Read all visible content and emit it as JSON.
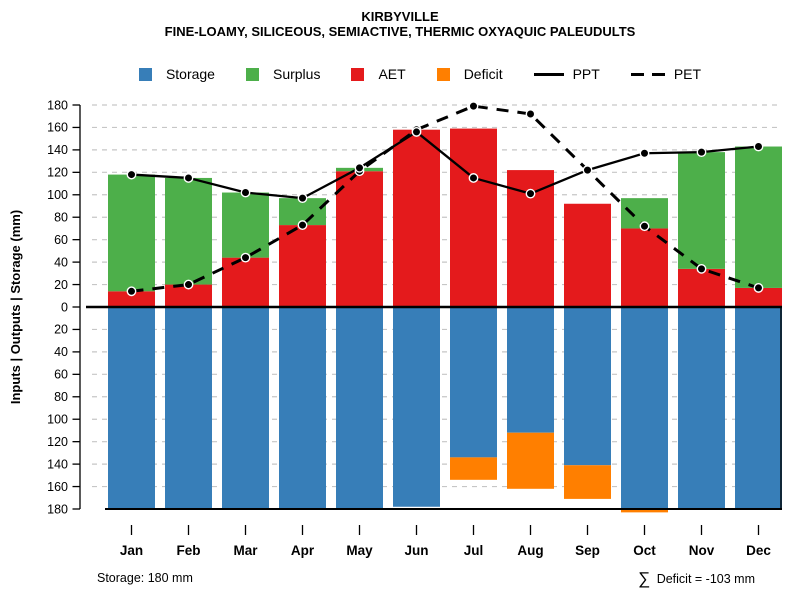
{
  "header": {
    "title": "KIRBYVILLE",
    "subtitle": "FINE-LOAMY, SILICEOUS, SEMIACTIVE, THERMIC OXYAQUIC PALEUDULTS"
  },
  "legend": {
    "items": [
      {
        "label": "Storage",
        "swatch": "square",
        "color": "#377EB8"
      },
      {
        "label": "Surplus",
        "swatch": "square",
        "color": "#4DAF4A"
      },
      {
        "label": "AET",
        "swatch": "square",
        "color": "#E41A1C"
      },
      {
        "label": "Deficit",
        "swatch": "square",
        "color": "#FF7F00"
      },
      {
        "label": "PPT",
        "swatch": "line-solid",
        "color": "#000000"
      },
      {
        "label": "PET",
        "swatch": "line-dashed",
        "color": "#000000"
      }
    ]
  },
  "axes": {
    "y_label": "Inputs | Outputs | Storage  (mm)",
    "y_max": 180,
    "y_tick_step": 20,
    "orientation": "mirrored: inputs/outputs above zero line, storage below"
  },
  "footer": {
    "storage_note": "Storage: 180 mm",
    "deficit_sigma": "∑",
    "deficit_text": " Deficit = -103 mm"
  },
  "colors": {
    "storage": "#377EB8",
    "surplus": "#4DAF4A",
    "aet": "#E41A1C",
    "deficit": "#FF7F00",
    "line": "#000000",
    "grid": "#C6C6C6",
    "background": "#FFFFFF"
  },
  "chart_data": {
    "type": "bar",
    "subtype": "soil water balance (stacked bars, mirrored axis, overlaid lines)",
    "categories": [
      "Jan",
      "Feb",
      "Mar",
      "Apr",
      "May",
      "Jun",
      "Jul",
      "Aug",
      "Sep",
      "Oct",
      "Nov",
      "Dec"
    ],
    "series": [
      {
        "name": "AET",
        "type": "bar",
        "panel": "top",
        "color": "#E41A1C",
        "values": [
          14,
          20,
          44,
          73,
          121,
          158,
          159,
          122,
          92,
          70,
          34,
          17
        ]
      },
      {
        "name": "Surplus",
        "type": "bar",
        "panel": "top",
        "color": "#4DAF4A",
        "values": [
          104,
          95,
          58,
          24,
          3,
          0,
          0,
          0,
          0,
          27,
          104,
          126
        ]
      },
      {
        "name": "Storage",
        "type": "bar",
        "panel": "bottom",
        "color": "#377EB8",
        "values": [
          180,
          180,
          180,
          180,
          180,
          178,
          134,
          112,
          141,
          180,
          180,
          180
        ]
      },
      {
        "name": "Deficit",
        "type": "bar",
        "panel": "bottom",
        "color": "#FF7F00",
        "values": [
          0,
          0,
          0,
          0,
          0,
          0,
          20,
          50,
          30,
          3,
          0,
          0
        ]
      },
      {
        "name": "PPT",
        "type": "line",
        "style": "solid",
        "panel": "top",
        "color": "#000000",
        "values": [
          118,
          115,
          102,
          97,
          124,
          156,
          115,
          101,
          122,
          137,
          138,
          143
        ]
      },
      {
        "name": "PET",
        "type": "line",
        "style": "dashed",
        "panel": "top",
        "color": "#000000",
        "values": [
          14,
          20,
          44,
          73,
          121,
          158,
          179,
          172,
          122,
          72,
          34,
          17
        ]
      }
    ],
    "title": "KIRBYVILLE",
    "subtitle": "FINE-LOAMY, SILICEOUS, SEMIACTIVE, THERMIC OXYAQUIC PALEUDULTS",
    "xlabel": "",
    "ylabel": "Inputs | Outputs | Storage  (mm)",
    "ylim_top": [
      0,
      180
    ],
    "ylim_bottom": [
      0,
      180
    ],
    "grid": "horizontal dashed every 20 mm",
    "legend_position": "top center"
  }
}
